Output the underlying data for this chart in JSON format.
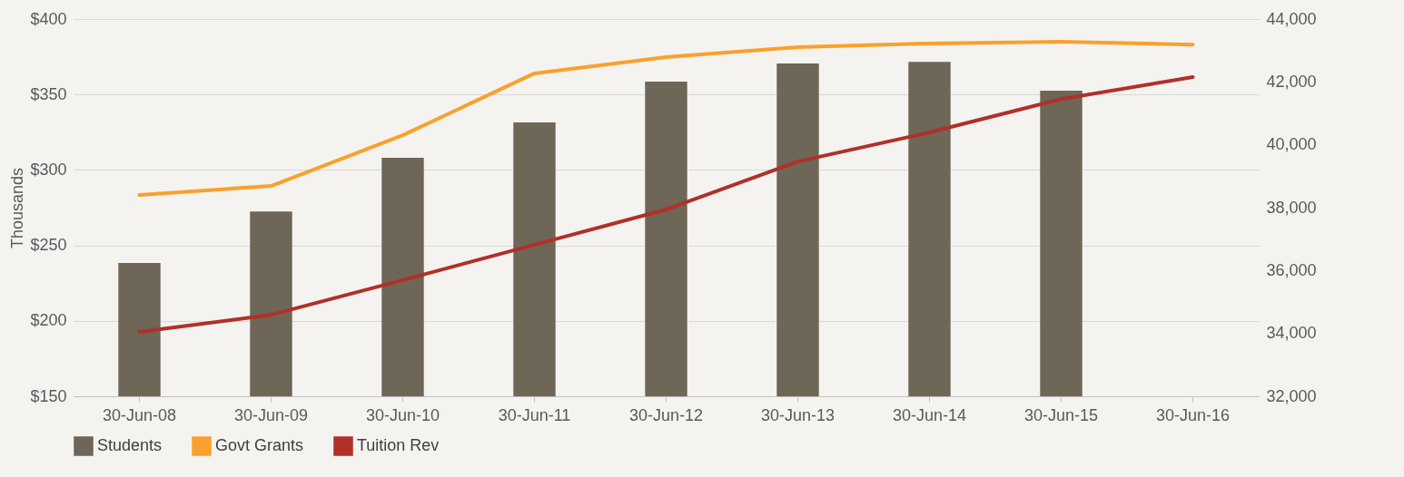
{
  "chart_data": {
    "type": "bar",
    "ylabel": "Thousands",
    "categories": [
      "30-Jun-08",
      "30-Jun-09",
      "30-Jun-10",
      "30-Jun-11",
      "30-Jun-12",
      "30-Jun-13",
      "30-Jun-14",
      "30-Jun-15",
      "30-Jun-16"
    ],
    "series": [
      {
        "name": "Students",
        "axis": "y2",
        "color": "#6e6657",
        "values": [
          36240,
          37880,
          39590,
          40710,
          42010,
          42590,
          42640,
          41720,
          null
        ]
      },
      {
        "name": "Govt Grants",
        "type": "line",
        "axis": "y",
        "color": "#f9a12c",
        "values": [
          283.4,
          289.4,
          323,
          364,
          374.8,
          381.4,
          383.8,
          385,
          383
        ]
      },
      {
        "name": "Tuition Rev",
        "type": "line",
        "axis": "y",
        "color": "#b0302a",
        "values": [
          192.7,
          204,
          227,
          250.4,
          273.8,
          305.6,
          324.9,
          347,
          361.5
        ]
      }
    ],
    "ylim": [
      150,
      400
    ],
    "yticks": [
      {
        "value": 150,
        "label": "$150"
      },
      {
        "value": 200,
        "label": "$200"
      },
      {
        "value": 250,
        "label": "$250"
      },
      {
        "value": 300,
        "label": "$300"
      },
      {
        "value": 350,
        "label": "$350"
      },
      {
        "value": 400,
        "label": "$400"
      }
    ],
    "y2lim": [
      32000,
      44000
    ],
    "y2ticks": [
      {
        "value": 32000,
        "label": "32,000"
      },
      {
        "value": 34000,
        "label": "34,000"
      },
      {
        "value": 36000,
        "label": "36,000"
      },
      {
        "value": 38000,
        "label": "38,000"
      },
      {
        "value": 40000,
        "label": "40,000"
      },
      {
        "value": 42000,
        "label": "42,000"
      },
      {
        "value": 44000,
        "label": "44,000"
      }
    ],
    "grid": "y",
    "legend": "bottom",
    "marker": "none",
    "line_style": "solid"
  }
}
